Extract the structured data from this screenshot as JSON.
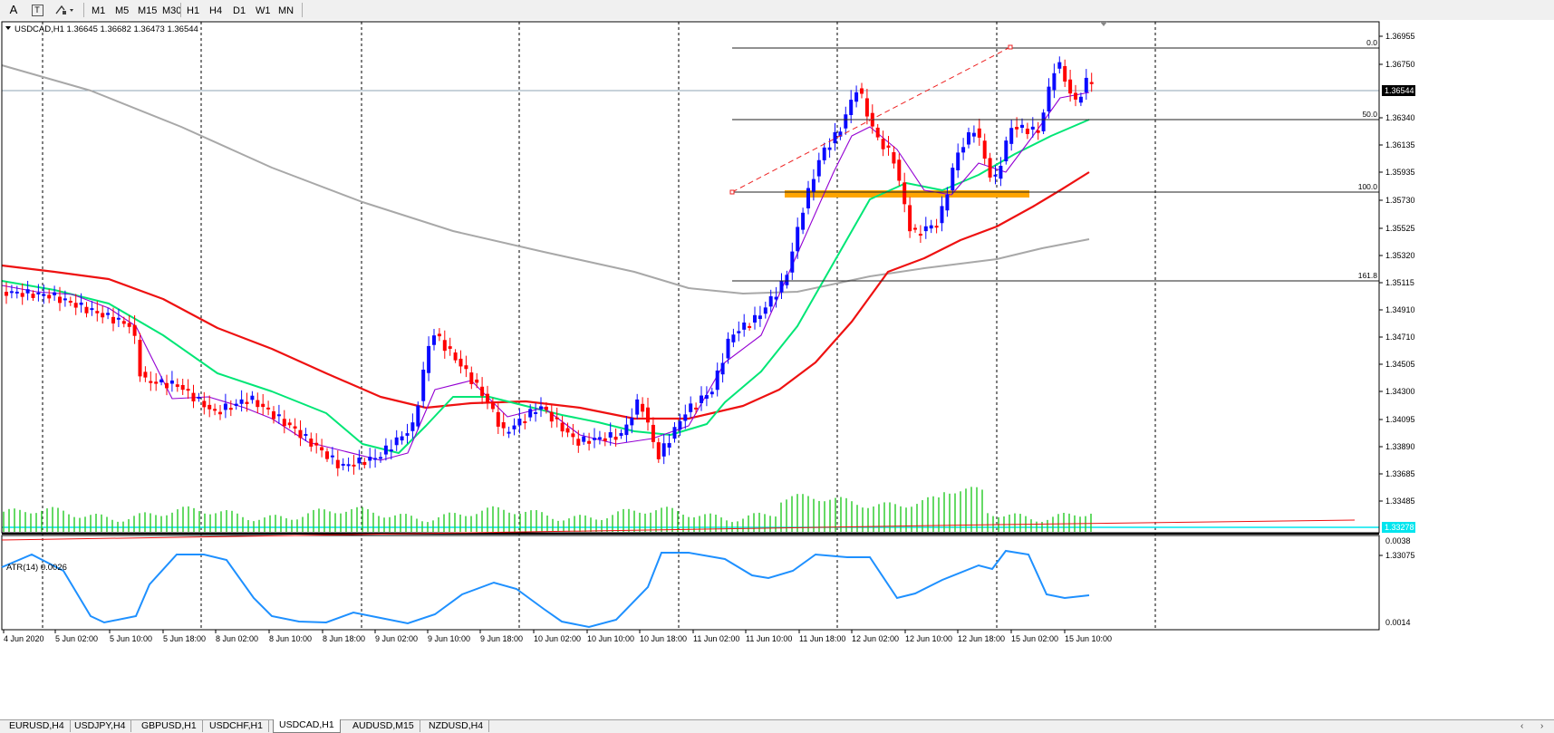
{
  "toolbar": {
    "text_tool": "A",
    "label_tool": "T",
    "timeframes": [
      "M1",
      "M5",
      "M15",
      "M30",
      "H1",
      "H4",
      "D1",
      "W1",
      "MN"
    ]
  },
  "chart": {
    "symbol_header": "USDCAD,H1  1.36645 1.36682 1.36473 1.36544",
    "price_levels": [
      "1.36955",
      "1.36750",
      "1.36340",
      "1.36135",
      "1.35935",
      "1.35730",
      "1.35525",
      "1.35320",
      "1.35115",
      "1.34910",
      "1.34710",
      "1.34505",
      "1.34300",
      "1.34095",
      "1.33890",
      "1.33685",
      "1.33485",
      "1.33075"
    ],
    "current_price_label": "1.36544",
    "line_price_label": "1.33278",
    "fib_labels": [
      "0.0",
      "50.0",
      "100.0",
      "161.8"
    ],
    "time_labels": [
      "4 Jun 2020",
      "5 Jun 02:00",
      "5 Jun 10:00",
      "5 Jun 18:00",
      "8 Jun 02:00",
      "8 Jun 10:00",
      "8 Jun 18:00",
      "9 Jun 02:00",
      "9 Jun 10:00",
      "9 Jun 18:00",
      "10 Jun 02:00",
      "10 Jun 10:00",
      "10 Jun 18:00",
      "11 Jun 02:00",
      "11 Jun 10:00",
      "11 Jun 18:00",
      "12 Jun 02:00",
      "12 Jun 10:00",
      "12 Jun 18:00",
      "15 Jun 02:00",
      "15 Jun 10:00"
    ],
    "indicator_header": "ATR(14) 0.0026",
    "indicator_levels": [
      "0.0038",
      "0.0014"
    ],
    "colors": {
      "bull": "#0a0aff",
      "bear": "#ff0000",
      "ema_fast": "#9400d3",
      "ema_mid": "#00e676",
      "ema_slow": "#ee1111",
      "sma_long": "#a8a8a8",
      "volume": "#32cd32",
      "atr": "#1e90ff",
      "support_zone": "#ffa500",
      "cyan_line": "#00e5ee"
    }
  },
  "tabs": [
    "EURUSD,H4",
    "USDJPY,H4",
    "GBPUSD,H1",
    "USDCHF,H1",
    "USDCAD,H1",
    "AUDUSD,M15",
    "NZDUSD,H4"
  ],
  "active_tab": "USDCAD,H1"
}
